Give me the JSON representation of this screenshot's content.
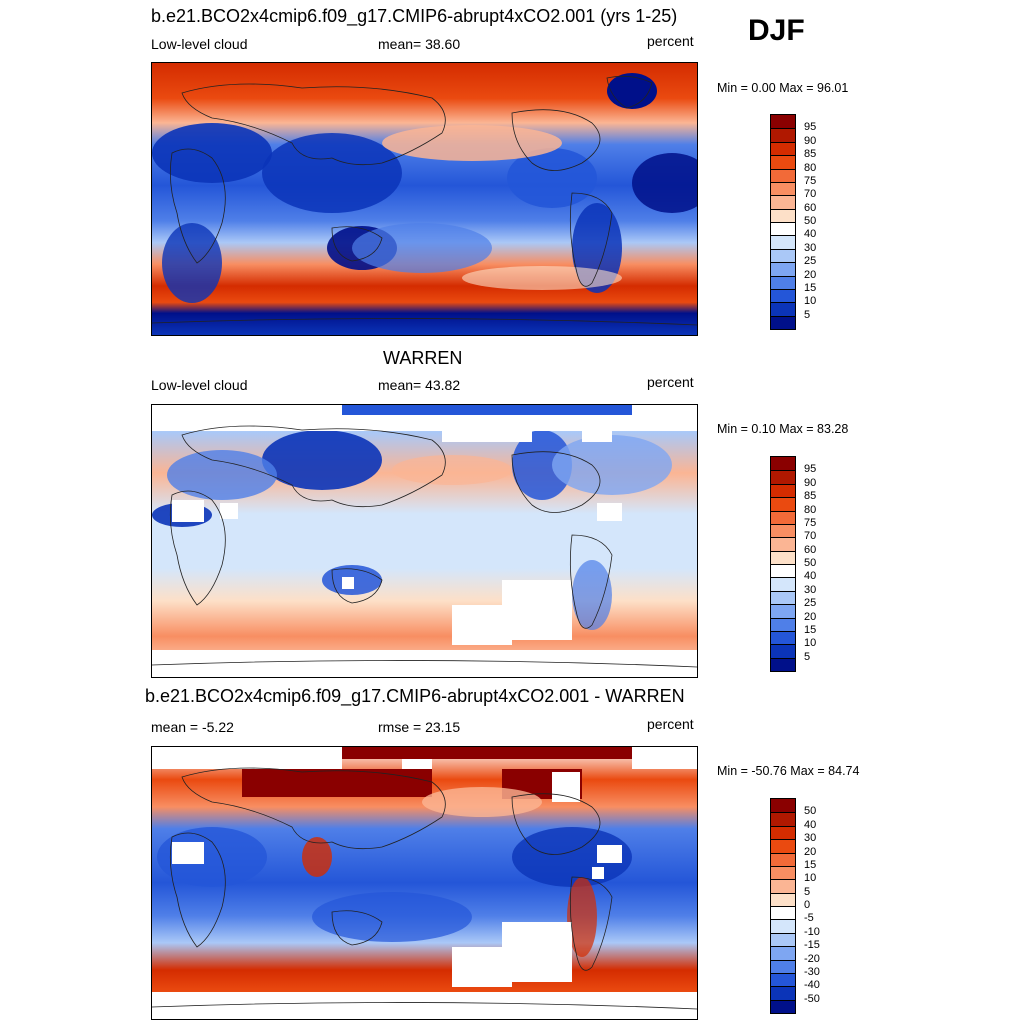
{
  "season_label": "DJF",
  "panels": [
    {
      "title": "b.e21.BCO2x4cmip6.f09_g17.CMIP6-abrupt4xCO2.001 (yrs 1-25)",
      "left_label": "Low-level cloud",
      "center_label": "mean=  38.60",
      "right_label": "percent",
      "minmax": "Min =   0.00 Max =  96.01",
      "colorbar_labels": [
        "95",
        "90",
        "85",
        "80",
        "75",
        "70",
        "60",
        "50",
        "40",
        "30",
        "25",
        "20",
        "15",
        "10",
        "5"
      ],
      "colorbar_colors": [
        "#8a0000",
        "#b01800",
        "#d42c00",
        "#ea4a10",
        "#f26a38",
        "#f88e62",
        "#fbb594",
        "#fde0c8",
        "#ffffff",
        "#d4e6fb",
        "#aac8f7",
        "#7ea6f2",
        "#4f7fe8",
        "#2456d8",
        "#0b34b8",
        "#00108a"
      ]
    },
    {
      "title": "WARREN",
      "left_label": "Low-level cloud",
      "center_label": "mean=  43.82",
      "right_label": "percent",
      "minmax": "Min =   0.10 Max =  83.28",
      "colorbar_labels": [
        "95",
        "90",
        "85",
        "80",
        "75",
        "70",
        "60",
        "50",
        "40",
        "30",
        "25",
        "20",
        "15",
        "10",
        "5"
      ],
      "colorbar_colors": [
        "#8a0000",
        "#b01800",
        "#d42c00",
        "#ea4a10",
        "#f26a38",
        "#f88e62",
        "#fbb594",
        "#fde0c8",
        "#ffffff",
        "#d4e6fb",
        "#aac8f7",
        "#7ea6f2",
        "#4f7fe8",
        "#2456d8",
        "#0b34b8",
        "#00108a"
      ]
    },
    {
      "title": "b.e21.BCO2x4cmip6.f09_g17.CMIP6-abrupt4xCO2.001 - WARREN",
      "left_label": "mean =  -5.22",
      "center_label": "rmse =  23.15",
      "right_label": "percent",
      "minmax": "Min = -50.76 Max =  84.74",
      "colorbar_labels": [
        "50",
        "40",
        "30",
        "20",
        "15",
        "10",
        "5",
        "0",
        "-5",
        "-10",
        "-15",
        "-20",
        "-30",
        "-40",
        "-50"
      ],
      "colorbar_colors": [
        "#8a0000",
        "#b01800",
        "#d42c00",
        "#ea4a10",
        "#f26a38",
        "#f88e62",
        "#fbb594",
        "#fde0c8",
        "#ffffff",
        "#d4e6fb",
        "#aac8f7",
        "#7ea6f2",
        "#4f7fe8",
        "#2456d8",
        "#0b34b8",
        "#00108a"
      ]
    }
  ]
}
